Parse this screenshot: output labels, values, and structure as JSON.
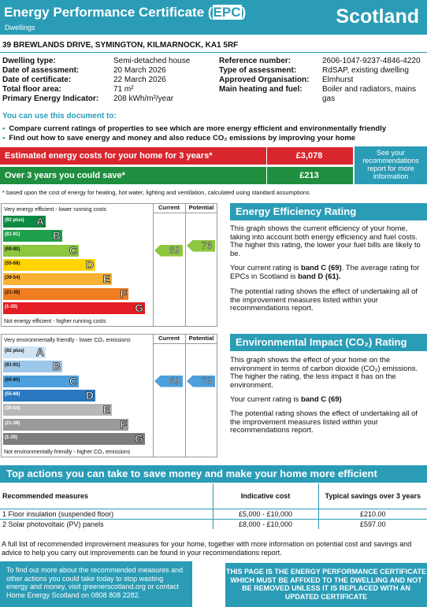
{
  "header": {
    "title_pre": "Energy Performance Certificate (",
    "title_epc": "EPC",
    "title_post": ")",
    "subtitle": "Dwellings",
    "country": "Scotland"
  },
  "address": "39 BREWLANDS DRIVE, SYMINGTON, KILMARNOCK, KA1 5RF",
  "details_left": [
    {
      "key": "Dwelling type:",
      "value": "Semi-detached house"
    },
    {
      "key": "Date of assessment:",
      "value": "20 March 2026"
    },
    {
      "key": "Date of certificate:",
      "value": "22 March 2026"
    },
    {
      "key": "Total floor area:",
      "value": "71 m²"
    },
    {
      "key": "Primary Energy Indicator:",
      "value": "208 kWh/m²/year"
    }
  ],
  "details_right": [
    {
      "key": "Reference number:",
      "value": "2606-1047-9237-4846-4220"
    },
    {
      "key": "Type of assessment:",
      "value": "RdSAP, existing dwelling"
    },
    {
      "key": "Approved Organisation:",
      "value": "Elmhurst"
    },
    {
      "key": "Main heating and fuel:",
      "value": "Boiler and radiators, mains gas"
    }
  ],
  "use_doc": {
    "title": "You can use this document to:",
    "bullet1": "Compare current ratings of properties to see which are more energy efficient and environmentally friendly",
    "bullet2": "Find out how to save energy and money and also reduce CO₂ emissions by improving your home"
  },
  "costs": {
    "row1_label": "Estimated energy costs for your home for 3 years*",
    "row1_value": "£3,078",
    "row2_label": "Over 3 years you could save*",
    "row2_value": "£213",
    "see_recommendations": "See your recommendations report for more information",
    "note": "* based upon the cost of energy for heating, hot water, lighting and ventilation, calculated using standard assumptions",
    "colors": {
      "row1": "#d8262f",
      "row2": "#1f8f3f"
    }
  },
  "energy_chart": {
    "header_current": "Current",
    "header_potential": "Potential",
    "top_caption": "Very energy efficient - lower running costs",
    "bottom_caption": "Not energy efficient - higher running costs",
    "current": "69",
    "potential": "76",
    "bands": [
      {
        "range": "(92 plus)",
        "letter": "A",
        "color": "#0b8a43"
      },
      {
        "range": "(81-91)",
        "letter": "B",
        "color": "#1fa04a"
      },
      {
        "range": "(69-80)",
        "letter": "C",
        "color": "#8dc63f"
      },
      {
        "range": "(55-68)",
        "letter": "D",
        "color": "#ffd400"
      },
      {
        "range": "(39-54)",
        "letter": "E",
        "color": "#f8b133"
      },
      {
        "range": "(21-38)",
        "letter": "F",
        "color": "#ef7d22"
      },
      {
        "range": "(1-20)",
        "letter": "G",
        "color": "#e31d23"
      }
    ],
    "arrow_color": "#8dc63f"
  },
  "env_chart": {
    "header_current": "Current",
    "header_potential": "Potential",
    "top_caption": "Very environmentally friendly - lower CO₂ emissions",
    "bottom_caption": "Not environmentally friendly - higher CO₂ emissions",
    "current": "69",
    "potential": "73",
    "bands": [
      {
        "range": "(92 plus)",
        "letter": "A",
        "color": "#cfe3f4"
      },
      {
        "range": "(81-91)",
        "letter": "B",
        "color": "#9cc6ea"
      },
      {
        "range": "(69-80)",
        "letter": "C",
        "color": "#4da0dc"
      },
      {
        "range": "(55-68)",
        "letter": "D",
        "color": "#2a78c0"
      },
      {
        "range": "(39-54)",
        "letter": "E",
        "color": "#b7b7b7"
      },
      {
        "range": "(21-38)",
        "letter": "F",
        "color": "#9a9a9a"
      },
      {
        "range": "(1-20)",
        "letter": "G",
        "color": "#7d7d7d"
      }
    ],
    "arrow_color": "#4da0dc"
  },
  "eer": {
    "title": "Energy Efficiency Rating",
    "p1": "This graph shows the current efficiency of your home, taking into account both energy efficiency and fuel costs. The higher this rating, the lower your fuel bills are likely to be.",
    "p2a": "Your current rating is ",
    "p2b": "band C (69)",
    "p2c": ". The average rating for EPCs in Scotland is ",
    "p2d": "band D (61).",
    "p3": "The potential rating shows the effect of undertaking all of the improvement measures listed within your recommendations report."
  },
  "eir": {
    "title": "Environmental Impact (CO₂) Rating",
    "p1": "This graph shows the effect of your home on the environment in terms of carbon dioxide (CO₂) emissions. The higher the rating, the less impact it has on the environment.",
    "p2a": "Your current rating is ",
    "p2b": "band C (69)",
    "p3": "The potential rating shows the effect of undertaking all of the improvement measures listed within your recommendations report."
  },
  "top_actions": {
    "title": "Top actions you can take to save money and make your home more efficient",
    "headers": [
      "Recommended measures",
      "Indicative cost",
      "Typical savings over 3 years"
    ],
    "rows": [
      [
        "1 Floor insulation (suspended floor)",
        "£5,000 - £10,000",
        "£210.00"
      ],
      [
        "2 Solar photovoltaic (PV) panels",
        "£8,000 - £10,000",
        "£597.00"
      ]
    ]
  },
  "footer": {
    "text": "A full list of recommended improvement measures for your home, together with more information on potential cost and savings and advice to help you carry out improvements can be found in your recommendations report.",
    "left_box": "To find out more about the recommended measures and other actions you could take today to stop wasting energy and money, visit greenerscotland.org or contact Home Energy Scotland on 0808 808 2282.",
    "right_box": "THIS PAGE IS THE ENERGY PERFORMANCE CERTIFICATE WHICH MUST BE AFFIXED TO THE DWELLING AND NOT BE REMOVED UNLESS IT IS REPLACED WITH AN UPDATED CERTIFICATE"
  }
}
